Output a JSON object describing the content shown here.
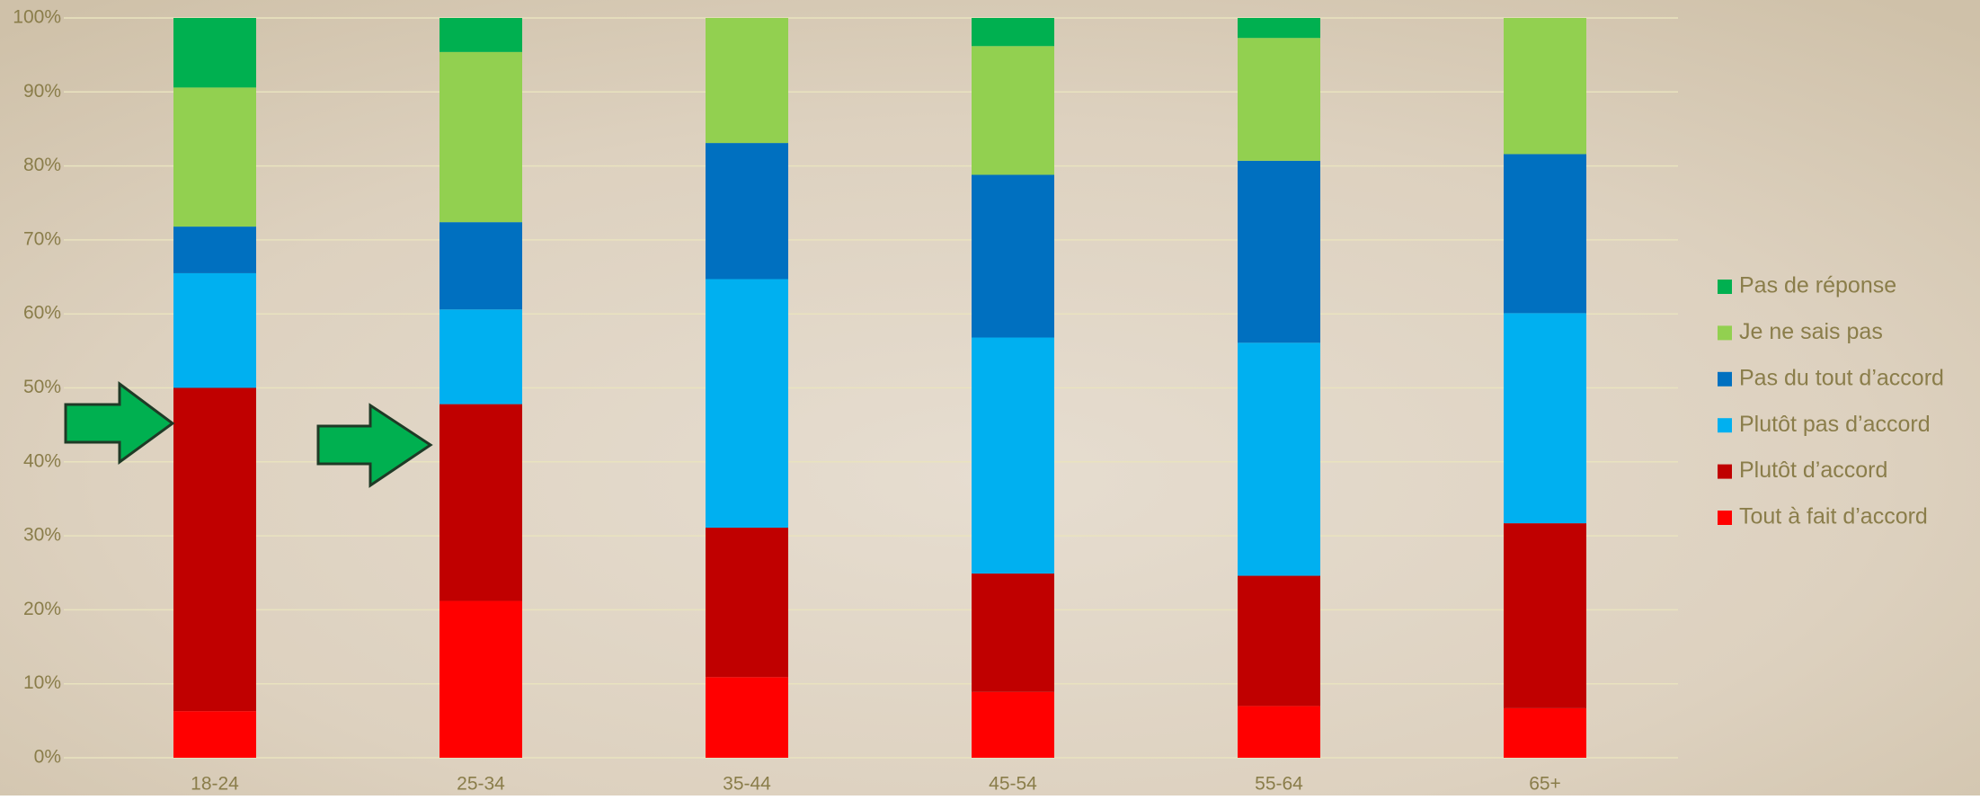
{
  "chart_data": {
    "type": "stacked_bar",
    "categories": [
      "18-24",
      "25-34",
      "35-44",
      "45-54",
      "55-64",
      "65+"
    ],
    "series": [
      {
        "name": "Tout à fait d’accord",
        "color": "#ff0000",
        "values": [
          6.3,
          21.2,
          10.9,
          8.9,
          7.0,
          6.7
        ]
      },
      {
        "name": "Plutôt d’accord",
        "color": "#c00000",
        "values": [
          43.7,
          26.6,
          20.2,
          16.0,
          17.6,
          25.0
        ]
      },
      {
        "name": "Plutôt pas d’accord",
        "color": "#00b0f0",
        "values": [
          15.5,
          12.8,
          33.6,
          31.9,
          31.5,
          28.4
        ]
      },
      {
        "name": "Pas du tout d’accord",
        "color": "#0070c0",
        "values": [
          6.3,
          11.8,
          18.4,
          22.0,
          24.6,
          21.5
        ]
      },
      {
        "name": "Je ne sais pas",
        "color": "#92d050",
        "values": [
          18.8,
          23.0,
          16.9,
          17.4,
          16.6,
          18.4
        ]
      },
      {
        "name": "Pas de réponse",
        "color": "#00b050",
        "values": [
          9.4,
          4.6,
          0,
          3.8,
          2.7,
          0
        ]
      }
    ],
    "ylim": [
      0,
      100
    ],
    "yticks": [
      {
        "value": 0,
        "label": "0%"
      },
      {
        "value": 10,
        "label": "10%"
      },
      {
        "value": 20,
        "label": "20%"
      },
      {
        "value": 30,
        "label": "30%"
      },
      {
        "value": 40,
        "label": "40%"
      },
      {
        "value": 50,
        "label": "50%"
      },
      {
        "value": 60,
        "label": "60%"
      },
      {
        "value": 70,
        "label": "70%"
      },
      {
        "value": 80,
        "label": "80%"
      },
      {
        "value": 90,
        "label": "90%"
      },
      {
        "value": 100,
        "label": "100%"
      }
    ],
    "grid": true,
    "legend": "right"
  }
}
